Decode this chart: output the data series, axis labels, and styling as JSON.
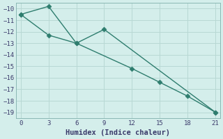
{
  "line1_x": [
    0,
    3,
    6,
    9,
    21
  ],
  "line1_y": [
    -10.5,
    -9.8,
    -13.0,
    -11.8,
    -19.0
  ],
  "line2_x": [
    0,
    3,
    6,
    12,
    15,
    18,
    21
  ],
  "line2_y": [
    -10.5,
    -12.3,
    -13.0,
    -15.2,
    -16.4,
    -17.6,
    -19.0
  ],
  "color": "#2e7d6e",
  "bg_color": "#d4eeeb",
  "grid_color": "#b8d8d4",
  "xlabel": "Humidex (Indice chaleur)",
  "xlim": [
    -0.5,
    21.5
  ],
  "ylim": [
    -19.5,
    -9.5
  ],
  "xticks": [
    0,
    3,
    6,
    9,
    12,
    15,
    18,
    21
  ],
  "yticks": [
    -19,
    -18,
    -17,
    -16,
    -15,
    -14,
    -13,
    -12,
    -11,
    -10
  ],
  "tick_color": "#3a3a6a",
  "spine_color": "#8ab8b4"
}
